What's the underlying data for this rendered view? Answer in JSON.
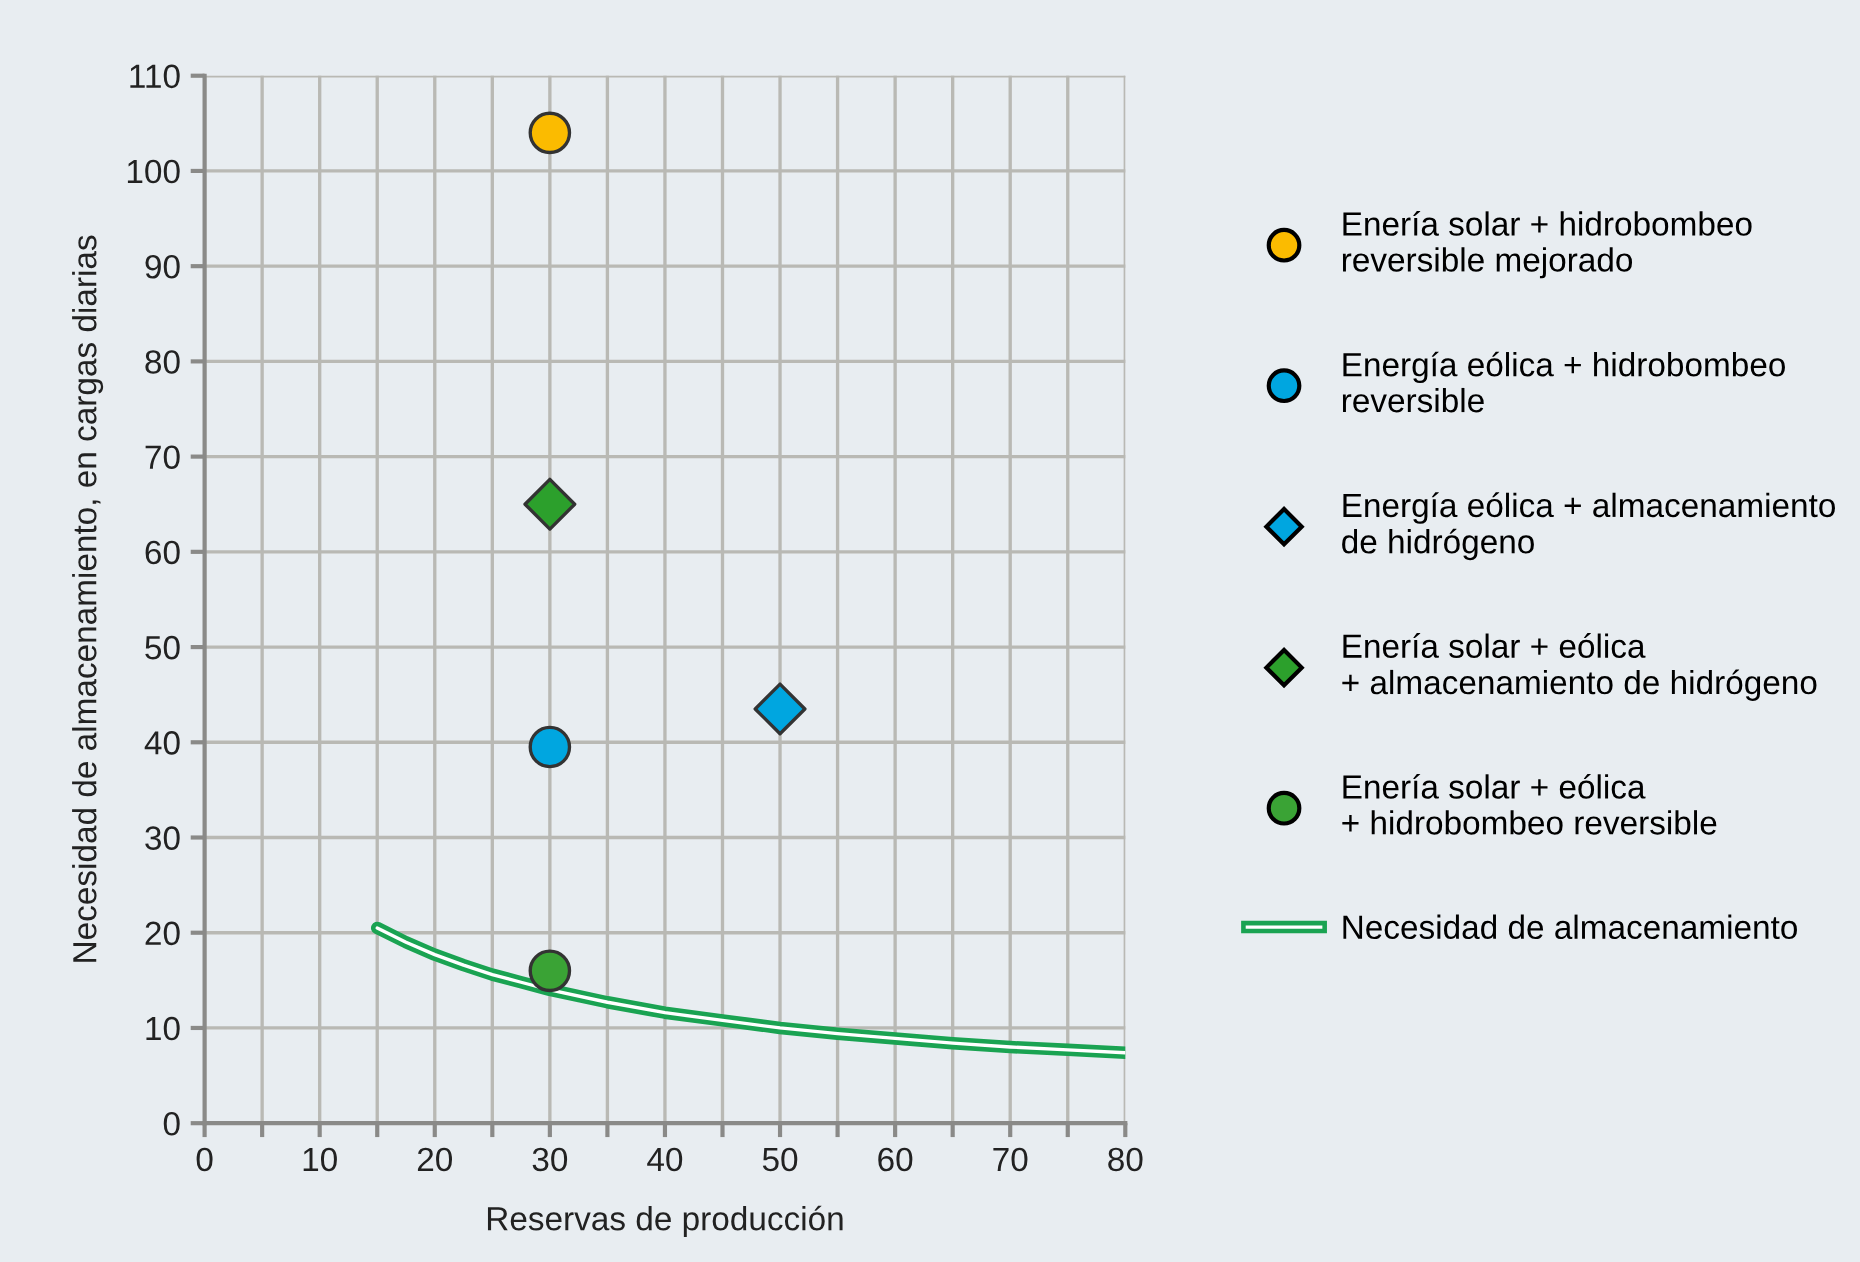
{
  "chart_data": {
    "type": "scatter",
    "xlabel": "Reservas de producción",
    "ylabel": "Necesidad de almacenamiento, en cargas diarias",
    "xlim": [
      0,
      80
    ],
    "ylim": [
      0,
      110
    ],
    "xticks": [
      0,
      {
        "value": 5,
        "label": null
      },
      10,
      {
        "value": 15,
        "label": null
      },
      20,
      {
        "value": 25,
        "label": null
      },
      30,
      {
        "value": 35,
        "label": null
      },
      40,
      {
        "value": 45,
        "label": null
      },
      50,
      {
        "value": 55,
        "label": null
      },
      60,
      {
        "value": 65,
        "label": null
      },
      70,
      {
        "value": 75,
        "label": null
      },
      80
    ],
    "yticks": [
      0,
      10,
      20,
      30,
      40,
      50,
      60,
      70,
      80,
      90,
      100,
      110
    ],
    "grid": true,
    "legend": "right",
    "series": [
      {
        "name": "Enería solar + hidrobombeo\nreversible mejorado",
        "color": "#fbbb00",
        "marker": "circle",
        "x": [
          30
        ],
        "values": [
          104
        ]
      },
      {
        "name": "Energía eólica + hidrobombeo\nreversible",
        "color": "#00a6e0",
        "marker": "circle",
        "x": [
          30
        ],
        "values": [
          39.5
        ]
      },
      {
        "name": "Energía eólica + almacenamiento\nde hidrógeno",
        "color": "#00a6e0",
        "marker": "diamond",
        "x": [
          50
        ],
        "values": [
          43.5
        ]
      },
      {
        "name": "Enería solar + eólica\n+ almacenamiento de hidrógeno",
        "color": "#2ca02c",
        "marker": "diamond",
        "x": [
          30
        ],
        "values": [
          65
        ]
      },
      {
        "name": "Enería solar + eólica\n+ hidrobombeo reversible",
        "color": "#3aa335",
        "marker": "circle",
        "x": [
          30
        ],
        "values": [
          16
        ]
      },
      {
        "name": "Necesidad de almacenamiento",
        "type": "line",
        "color": "#1aa352",
        "marker": "none",
        "x": [
          15,
          17.5,
          20,
          22.5,
          25,
          27.5,
          30,
          35,
          40,
          45,
          50,
          55,
          60,
          65,
          70,
          75,
          80
        ],
        "values": [
          20.5,
          19,
          17.7,
          16.6,
          15.6,
          14.8,
          14,
          12.7,
          11.6,
          10.8,
          10,
          9.4,
          8.9,
          8.4,
          8,
          7.7,
          7.4
        ]
      }
    ]
  }
}
